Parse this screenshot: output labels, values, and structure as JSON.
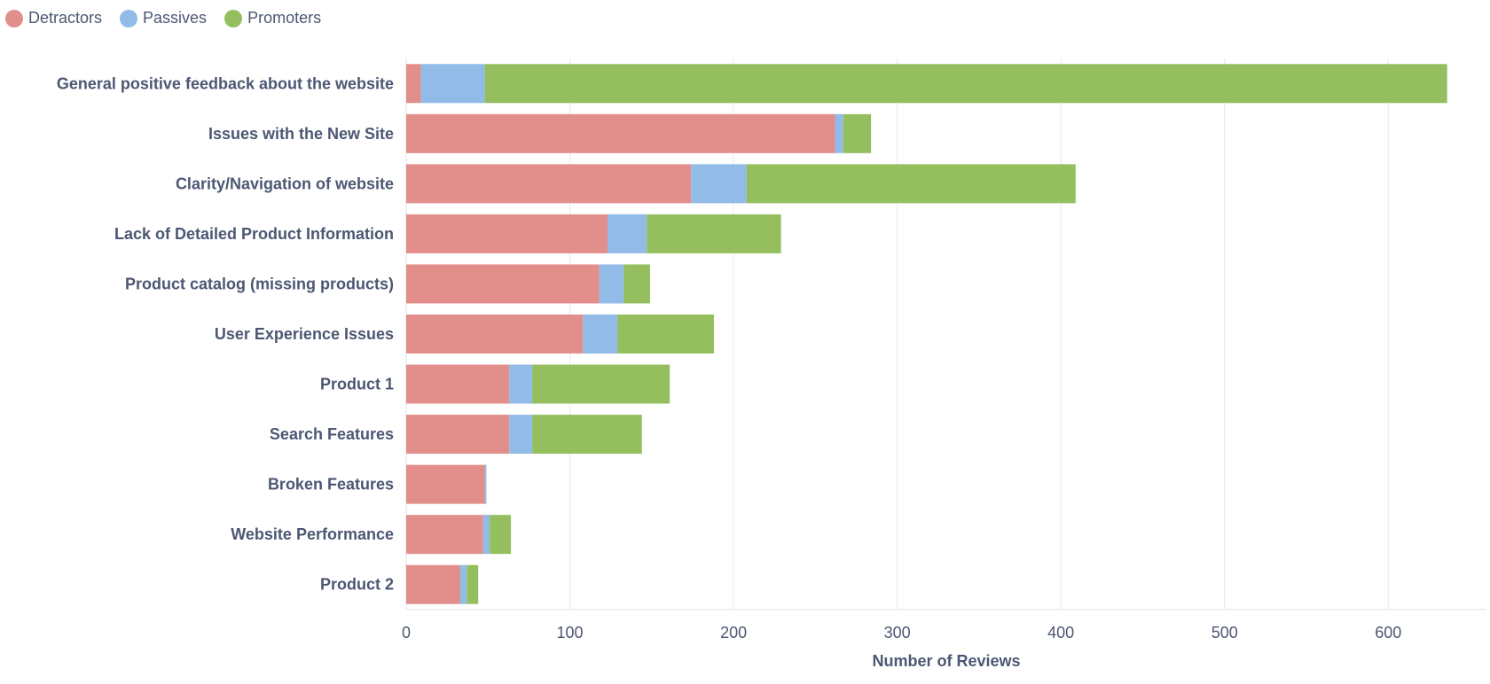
{
  "chart_data": {
    "type": "bar",
    "orientation": "horizontal",
    "stacked": true,
    "title": "",
    "xlabel": "Number of Reviews",
    "ylabel": "",
    "xlim": [
      0,
      660
    ],
    "xticks": [
      0,
      100,
      200,
      300,
      400,
      500,
      600
    ],
    "grid": true,
    "legend_position": "top-left",
    "categories": [
      "General positive feedback about the website",
      "Issues with the New Site",
      "Clarity/Navigation of website",
      "Lack of Detailed Product Information",
      "Product catalog (missing products)",
      "User Experience Issues",
      "Product 1",
      "Search Features",
      "Broken Features",
      "Website Performance",
      "Product 2"
    ],
    "series": [
      {
        "name": "Detractors",
        "color": "#e28f8c",
        "values": [
          9,
          262,
          174,
          123,
          118,
          108,
          63,
          63,
          48,
          47,
          33
        ]
      },
      {
        "name": "Passives",
        "color": "#92bbe7",
        "values": [
          39,
          5,
          34,
          24,
          15,
          21,
          14,
          14,
          1,
          4,
          4
        ]
      },
      {
        "name": "Promoters",
        "color": "#95bf5f",
        "values": [
          588,
          17,
          201,
          82,
          16,
          59,
          84,
          67,
          0,
          13,
          7
        ]
      }
    ]
  }
}
